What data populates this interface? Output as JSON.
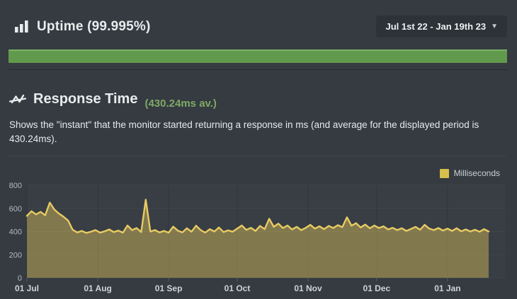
{
  "header": {
    "title": "Uptime (99.995%)",
    "date_range": "Jul 1st 22 - Jan 19th 23",
    "caret": "▼"
  },
  "uptime_bar": {
    "uptime_percent": "99.995",
    "color": "#629a4d"
  },
  "response_section": {
    "title": "Response Time",
    "average": "(430.24ms av.)",
    "description": "Shows the \"instant\" that the monitor started returning a response in ms (and average for the displayed period is 430.24ms)."
  },
  "chart_data": {
    "type": "area",
    "title": "Response Time",
    "ylabel": "",
    "xlabel": "",
    "legend_position": "top-right",
    "grid": "faint",
    "legend": [
      {
        "label": "Milliseconds",
        "color": "#d8be4b"
      }
    ],
    "ylim": [
      0,
      800
    ],
    "yticks": [
      800,
      600,
      400,
      200,
      0
    ],
    "x_range_days": [
      0,
      202
    ],
    "xticks": [
      {
        "day": 0,
        "label": "01 Jul"
      },
      {
        "day": 31,
        "label": "01 Aug"
      },
      {
        "day": 62,
        "label": "01 Sep"
      },
      {
        "day": 92,
        "label": "01 Oct"
      },
      {
        "day": 123,
        "label": "01 Nov"
      },
      {
        "day": 153,
        "label": "01 Dec"
      },
      {
        "day": 184,
        "label": "01 Jan"
      }
    ],
    "avg_ms": 430.24,
    "line_color": "#e9cb62",
    "fill_color": "rgba(232,200,92,0.42)",
    "series": [
      {
        "name": "Milliseconds",
        "x_step_days": 2,
        "values": [
          535,
          575,
          548,
          570,
          540,
          650,
          590,
          555,
          528,
          495,
          415,
          392,
          405,
          388,
          398,
          412,
          390,
          402,
          418,
          395,
          408,
          390,
          452,
          412,
          430,
          395,
          675,
          400,
          412,
          392,
          405,
          390,
          442,
          408,
          392,
          428,
          398,
          450,
          412,
          390,
          420,
          400,
          435,
          396,
          410,
          398,
          425,
          452,
          414,
          432,
          405,
          448,
          420,
          510,
          440,
          468,
          430,
          452,
          418,
          440,
          412,
          432,
          458,
          425,
          445,
          420,
          448,
          430,
          455,
          438,
          522,
          450,
          472,
          435,
          460,
          428,
          452,
          430,
          445,
          418,
          432,
          412,
          428,
          405,
          422,
          440,
          415,
          458,
          425,
          412,
          430,
          408,
          425,
          405,
          428,
          402,
          418,
          400,
          415,
          398,
          420,
          400
        ]
      }
    ]
  },
  "colors": {
    "background": "#353b41",
    "accent_green": "#7fa965",
    "bar_green": "#629a4d"
  }
}
